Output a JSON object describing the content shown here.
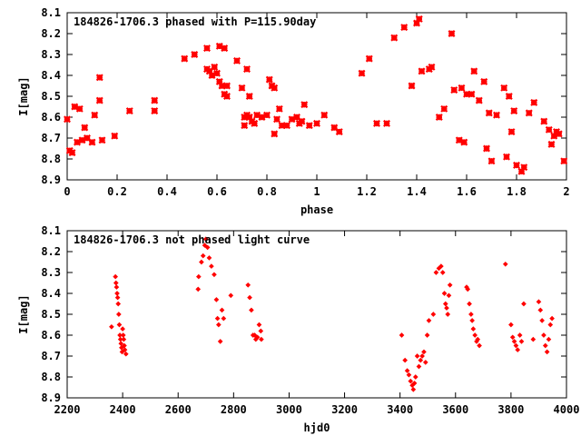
{
  "chart_data": [
    {
      "type": "scatter",
      "title": "184826-1706.3 phased with P=115.90day",
      "xlabel": "phase",
      "ylabel": "I[mag]",
      "xlim": [
        0,
        2
      ],
      "ylim": [
        8.9,
        8.1
      ],
      "y_inverted": true,
      "xticks": [
        0,
        0.2,
        0.4,
        0.6,
        0.8,
        1,
        1.2,
        1.4,
        1.6,
        1.8,
        2
      ],
      "xtick_labels": [
        "0",
        "0.2",
        "0.4",
        "0.6",
        "0.8",
        "1",
        "1.2",
        "1.4",
        "1.6",
        "1.8",
        "2"
      ],
      "yticks": [
        8.1,
        8.2,
        8.3,
        8.4,
        8.5,
        8.6,
        8.7,
        8.8,
        8.9
      ],
      "ytick_labels": [
        "8.1",
        "8.2",
        "8.3",
        "8.4",
        "8.5",
        "8.6",
        "8.7",
        "8.8",
        "8.9"
      ],
      "grid": false,
      "marker_color": "#ff0000",
      "series": [
        {
          "x": [
            0.0,
            0.01,
            0.02,
            0.03,
            0.04,
            0.05,
            0.06,
            0.07,
            0.08,
            0.1,
            0.11,
            0.13,
            0.13,
            0.14,
            0.19,
            0.25,
            0.35,
            0.35,
            0.47,
            0.51,
            0.56,
            0.56,
            0.57,
            0.58,
            0.59,
            0.6,
            0.61,
            0.61,
            0.62,
            0.63,
            0.63,
            0.64,
            0.64,
            0.68,
            0.7,
            0.71,
            0.71,
            0.72,
            0.72,
            0.73,
            0.73,
            0.74,
            0.75,
            0.76,
            0.78,
            0.8,
            0.81,
            0.82,
            0.83,
            0.83,
            0.84,
            0.85,
            0.86,
            0.88,
            0.9,
            0.92,
            0.93,
            0.94,
            0.95,
            0.97,
            1.0,
            1.03,
            1.07,
            1.09,
            1.18,
            1.21,
            1.24,
            1.28,
            1.31,
            1.35,
            1.38,
            1.4,
            1.41,
            1.42,
            1.45,
            1.46,
            1.49,
            1.51,
            1.54,
            1.55,
            1.57,
            1.58,
            1.59,
            1.6,
            1.62,
            1.63,
            1.65,
            1.67,
            1.68,
            1.69,
            1.7,
            1.72,
            1.75,
            1.76,
            1.77,
            1.78,
            1.79,
            1.8,
            1.82,
            1.83,
            1.85,
            1.87,
            1.91,
            1.93,
            1.94,
            1.95,
            1.96,
            1.97,
            1.99
          ],
          "y": [
            8.61,
            8.76,
            8.77,
            8.55,
            8.72,
            8.56,
            8.71,
            8.65,
            8.7,
            8.72,
            8.59,
            8.41,
            8.52,
            8.71,
            8.69,
            8.57,
            8.52,
            8.57,
            8.32,
            8.3,
            8.27,
            8.37,
            8.38,
            8.4,
            8.36,
            8.39,
            8.26,
            8.43,
            8.45,
            8.27,
            8.49,
            8.5,
            8.45,
            8.33,
            8.46,
            8.6,
            8.64,
            8.37,
            8.59,
            8.5,
            8.6,
            8.62,
            8.63,
            8.59,
            8.6,
            8.59,
            8.42,
            8.45,
            8.46,
            8.68,
            8.61,
            8.56,
            8.64,
            8.64,
            8.61,
            8.6,
            8.63,
            8.62,
            8.54,
            8.64,
            8.63,
            8.59,
            8.65,
            8.67,
            8.39,
            8.32,
            8.63,
            8.63,
            8.22,
            8.17,
            8.45,
            8.15,
            8.13,
            8.38,
            8.37,
            8.36,
            8.6,
            8.56,
            8.2,
            8.47,
            8.71,
            8.46,
            8.72,
            8.49,
            8.49,
            8.38,
            8.52,
            8.43,
            8.75,
            8.58,
            8.81,
            8.59,
            8.46,
            8.79,
            8.5,
            8.67,
            8.57,
            8.83,
            8.86,
            8.84,
            8.58,
            8.53,
            8.62,
            8.66,
            8.73,
            8.69,
            8.67,
            8.68,
            8.81
          ]
        }
      ]
    },
    {
      "type": "scatter",
      "title": "184826-1706.3 not phased light curve",
      "xlabel": "hjd0",
      "ylabel": "I[mag]",
      "xlim": [
        2200,
        4000
      ],
      "ylim": [
        8.9,
        8.1
      ],
      "y_inverted": true,
      "xticks": [
        2200,
        2400,
        2600,
        2800,
        3000,
        3200,
        3400,
        3600,
        3800,
        4000
      ],
      "xtick_labels": [
        "2200",
        "2400",
        "2600",
        "2800",
        "3000",
        "3200",
        "3400",
        "3600",
        "3800",
        "4000"
      ],
      "yticks": [
        8.1,
        8.2,
        8.3,
        8.4,
        8.5,
        8.6,
        8.7,
        8.8,
        8.9
      ],
      "ytick_labels": [
        "8.1",
        "8.2",
        "8.3",
        "8.4",
        "8.5",
        "8.6",
        "8.7",
        "8.8",
        "8.9"
      ],
      "grid": false,
      "marker_color": "#ff0000",
      "series": [
        {
          "x": [
            2360,
            2374,
            2376,
            2378,
            2380,
            2382,
            2384,
            2386,
            2388,
            2390,
            2392,
            2394,
            2396,
            2398,
            2400,
            2402,
            2404,
            2406,
            2408,
            2412,
            2672,
            2674,
            2684,
            2690,
            2696,
            2700,
            2706,
            2712,
            2720,
            2730,
            2738,
            2742,
            2746,
            2752,
            2758,
            2764,
            2790,
            2852,
            2858,
            2864,
            2870,
            2876,
            2880,
            2886,
            2892,
            2898,
            2900,
            3406,
            3418,
            3426,
            3432,
            3438,
            3444,
            3448,
            3452,
            3456,
            3462,
            3468,
            3474,
            3480,
            3486,
            3492,
            3498,
            3504,
            3520,
            3530,
            3540,
            3548,
            3554,
            3560,
            3564,
            3568,
            3572,
            3576,
            3580,
            3640,
            3644,
            3650,
            3656,
            3660,
            3664,
            3670,
            3676,
            3680,
            3686,
            3780,
            3800,
            3806,
            3812,
            3818,
            3824,
            3832,
            3838,
            3846,
            3880,
            3900,
            3906,
            3912,
            3918,
            3924,
            3930,
            3936,
            3942,
            3948
          ],
          "y": [
            8.56,
            8.32,
            8.35,
            8.37,
            8.4,
            8.42,
            8.45,
            8.5,
            8.55,
            8.6,
            8.62,
            8.64,
            8.66,
            8.68,
            8.57,
            8.6,
            8.62,
            8.65,
            8.67,
            8.69,
            8.38,
            8.32,
            8.25,
            8.22,
            8.17,
            8.14,
            8.18,
            8.23,
            8.27,
            8.31,
            8.43,
            8.52,
            8.55,
            8.63,
            8.48,
            8.52,
            8.41,
            8.36,
            8.42,
            8.48,
            8.6,
            8.6,
            8.62,
            8.61,
            8.55,
            8.58,
            8.62,
            8.6,
            8.72,
            8.77,
            8.79,
            8.82,
            8.84,
            8.86,
            8.83,
            8.8,
            8.7,
            8.75,
            8.72,
            8.7,
            8.68,
            8.73,
            8.6,
            8.53,
            8.5,
            8.3,
            8.28,
            8.27,
            8.3,
            8.4,
            8.45,
            8.47,
            8.5,
            8.41,
            8.36,
            8.37,
            8.38,
            8.45,
            8.5,
            8.53,
            8.57,
            8.6,
            8.63,
            8.62,
            8.65,
            8.26,
            8.55,
            8.61,
            8.63,
            8.65,
            8.67,
            8.6,
            8.63,
            8.45,
            8.62,
            8.44,
            8.48,
            8.53,
            8.6,
            8.65,
            8.68,
            8.62,
            8.55,
            8.52
          ]
        }
      ]
    }
  ]
}
